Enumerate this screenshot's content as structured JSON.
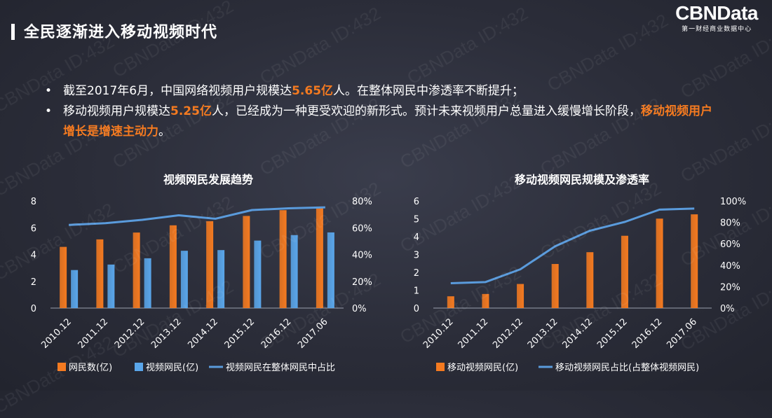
{
  "header": {
    "title": "全民逐渐进入移动视频时代"
  },
  "logo": {
    "main": "CBNData",
    "sub": "第一财经商业数据中心"
  },
  "watermark": "CBNData ID:432",
  "bullets": [
    {
      "parts": [
        {
          "text": "截至2017年6月，中国网络视频用户规模达"
        },
        {
          "text": "5.65亿",
          "hl": true
        },
        {
          "text": "人。在整体网民中渗透率不断提升；"
        }
      ]
    },
    {
      "parts": [
        {
          "text": "移动视频用户规模达"
        },
        {
          "text": "5.25亿",
          "hl": true
        },
        {
          "text": "人，已经成为一种更受欢迎的新形式。预计未来视频用户总量进入缓慢增长阶段，"
        },
        {
          "text": "移动视频用户增长是增速主动力",
          "hl": true
        },
        {
          "text": "。"
        }
      ]
    }
  ],
  "colors": {
    "orange": "#f47a20",
    "blue": "#5aa6ea",
    "line": "#5a9bdc",
    "highlight": "#f47a20"
  },
  "chart_data": [
    {
      "type": "bar",
      "title": "视频网民发展趋势",
      "categories": [
        "2010.12",
        "2011.12",
        "2012.12",
        "2013.12",
        "2014.12",
        "2015.12",
        "2016.12",
        "2017.06"
      ],
      "series": [
        {
          "name": "网民数(亿)",
          "kind": "bar",
          "axis": "left",
          "values": [
            4.57,
            5.13,
            5.64,
            6.18,
            6.49,
            6.88,
            7.31,
            7.51
          ]
        },
        {
          "name": "视频网民(亿)",
          "kind": "bar",
          "axis": "left",
          "values": [
            2.84,
            3.25,
            3.72,
            4.28,
            4.33,
            5.04,
            5.45,
            5.65
          ]
        },
        {
          "name": "视频网民在整体网民中占比",
          "kind": "line",
          "axis": "right",
          "values": [
            62.1,
            63.4,
            65.9,
            69.3,
            66.7,
            73.2,
            74.5,
            75.2
          ]
        }
      ],
      "ylim_left": [
        0,
        8
      ],
      "yticks_left": [
        0,
        2,
        4,
        6,
        8
      ],
      "ylim_right": [
        0,
        80
      ],
      "yticks_right": [
        "0%",
        "20%",
        "40%",
        "60%",
        "80%"
      ],
      "grid": false,
      "legend": "bottom"
    },
    {
      "type": "bar",
      "title": "移动视频网民规模及渗透率",
      "categories": [
        "2010.12",
        "2011.12",
        "2012.12",
        "2013.12",
        "2014.12",
        "2015.12",
        "2016.12",
        "2017.06"
      ],
      "series": [
        {
          "name": "移动视频网民(亿)",
          "kind": "bar",
          "axis": "left",
          "values": [
            0.66,
            0.79,
            1.35,
            2.47,
            3.13,
            4.05,
            5.01,
            5.25
          ]
        },
        {
          "name": "移动视频网民占比(占整体视频网民)",
          "kind": "line",
          "axis": "right",
          "values": [
            23.2,
            24.3,
            36.2,
            57.7,
            72.2,
            80.4,
            91.9,
            92.9
          ]
        }
      ],
      "ylim_left": [
        0,
        6
      ],
      "yticks_left": [
        0,
        1,
        2,
        3,
        4,
        5,
        6
      ],
      "ylim_right": [
        0,
        100
      ],
      "yticks_right": [
        "0%",
        "20%",
        "40%",
        "60%",
        "80%",
        "100%"
      ],
      "grid": false,
      "legend": "bottom"
    }
  ]
}
